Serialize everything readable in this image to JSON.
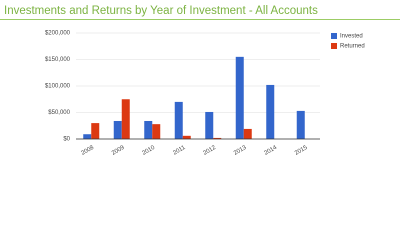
{
  "chart_data": {
    "type": "bar",
    "title": "Investments and Returns by Year of Investment - All Accounts",
    "categories": [
      "2008",
      "2009",
      "2010",
      "2011",
      "2012",
      "2013",
      "2014",
      "2015"
    ],
    "series": [
      {
        "name": "Invested",
        "color": "#3366cc",
        "values": [
          9000,
          34000,
          34000,
          70000,
          51000,
          155000,
          102000,
          53000
        ]
      },
      {
        "name": "Returned",
        "color": "#dc3912",
        "values": [
          30000,
          75000,
          28000,
          6000,
          2000,
          19000,
          null,
          null
        ]
      }
    ],
    "ylim": [
      0,
      200000
    ],
    "yticks": [
      {
        "value": 0,
        "label": "$0"
      },
      {
        "value": 50000,
        "label": "$50,000"
      },
      {
        "value": 100000,
        "label": "$100,000"
      },
      {
        "value": 150000,
        "label": "$150,000"
      },
      {
        "value": 200000,
        "label": "$200,000"
      }
    ],
    "grid": true,
    "legend": "right"
  }
}
